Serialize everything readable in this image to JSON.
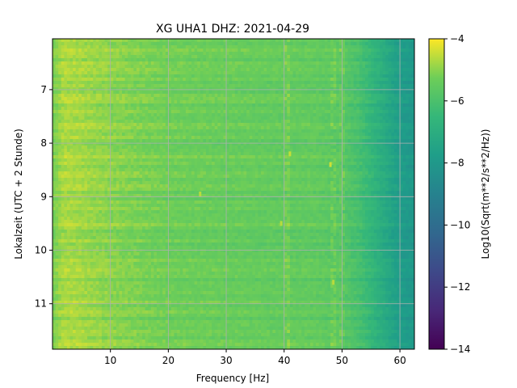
{
  "chart_data": {
    "type": "heatmap",
    "title": "XG UHA1  DHZ: 2021-04-29",
    "xlabel": "Frequency [Hz]",
    "ylabel": "Lokalzeit (UTC + 2 Stunde)",
    "xlim": [
      0,
      62.5
    ],
    "ylim": [
      11.85,
      6.05
    ],
    "y_inverted": true,
    "xticks": [
      10,
      20,
      30,
      40,
      50,
      60
    ],
    "yticks": [
      7,
      8,
      9,
      10,
      11
    ],
    "grid": true,
    "colormap": "viridis",
    "colorbar": {
      "label": "Log10(Sqrt(m**2/s**2/Hz))",
      "range": [
        -14,
        -4
      ],
      "ticks": [
        -4,
        -6,
        -8,
        -10,
        -12,
        -14
      ]
    },
    "value_profile_by_frequency": {
      "frequency_hz": [
        0,
        2,
        5,
        10,
        20,
        30,
        40,
        45,
        50,
        53,
        56,
        58,
        60,
        62.5
      ],
      "log_amplitude": [
        -5.2,
        -4.7,
        -4.8,
        -5.0,
        -5.3,
        -5.4,
        -5.5,
        -5.5,
        -5.7,
        -6.1,
        -6.8,
        -7.3,
        -7.8,
        -8.0
      ]
    },
    "notable_features": {
      "line_frequencies_hz": [
        40.5,
        48.5,
        50.0
      ],
      "bursts": [
        {
          "frequency_hz": 41.0,
          "time": 8.2,
          "log_amplitude": -4.5
        },
        {
          "frequency_hz": 48.0,
          "time": 8.4,
          "log_amplitude": -4.4
        },
        {
          "frequency_hz": 25.5,
          "time": 8.95,
          "log_amplitude": -4.6
        },
        {
          "frequency_hz": 39.5,
          "time": 9.5,
          "log_amplitude": -4.6
        },
        {
          "frequency_hz": 48.5,
          "time": 10.6,
          "log_amplitude": -4.6
        }
      ]
    }
  },
  "colors": {
    "grid": "#b0b0b0",
    "axis": "#000000"
  }
}
